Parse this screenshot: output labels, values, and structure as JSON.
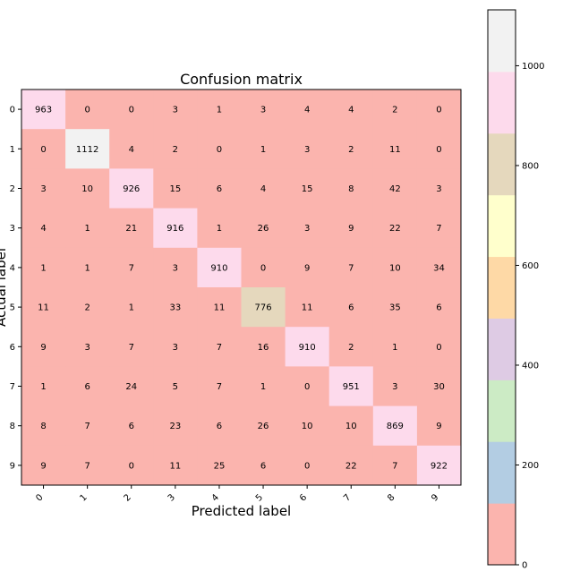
{
  "chart_data": {
    "type": "heatmap",
    "title": "Confusion matrix",
    "xlabel": "Predicted label",
    "ylabel": "Actual label",
    "x_categories": [
      "0",
      "1",
      "2",
      "3",
      "4",
      "5",
      "6",
      "7",
      "8",
      "9"
    ],
    "y_categories": [
      "0",
      "1",
      "2",
      "3",
      "4",
      "5",
      "6",
      "7",
      "8",
      "9"
    ],
    "values": [
      [
        963,
        0,
        0,
        3,
        1,
        3,
        4,
        4,
        2,
        0
      ],
      [
        0,
        1112,
        4,
        2,
        0,
        1,
        3,
        2,
        11,
        0
      ],
      [
        3,
        10,
        926,
        15,
        6,
        4,
        15,
        8,
        42,
        3
      ],
      [
        4,
        1,
        21,
        916,
        1,
        26,
        3,
        9,
        22,
        7
      ],
      [
        1,
        1,
        7,
        3,
        910,
        0,
        9,
        7,
        10,
        34
      ],
      [
        11,
        2,
        1,
        33,
        11,
        776,
        11,
        6,
        35,
        6
      ],
      [
        9,
        3,
        7,
        3,
        7,
        16,
        910,
        2,
        1,
        0
      ],
      [
        1,
        6,
        24,
        5,
        7,
        1,
        0,
        951,
        3,
        30
      ],
      [
        8,
        7,
        6,
        23,
        6,
        26,
        10,
        10,
        869,
        9
      ],
      [
        9,
        7,
        0,
        11,
        25,
        6,
        0,
        22,
        7,
        922
      ]
    ],
    "colormap": "Pastel1",
    "colormap_colors": [
      "#fbb4ae",
      "#b3cde3",
      "#ccebc5",
      "#decbe4",
      "#fed9a6",
      "#ffffcc",
      "#e5d8bd",
      "#fddaec",
      "#f2f2f2"
    ],
    "vmin": 0,
    "vmax": 1112,
    "colorbar_ticks": [
      0,
      200,
      400,
      600,
      800,
      1000
    ],
    "grid": false,
    "x_tick_rotation": 45
  }
}
